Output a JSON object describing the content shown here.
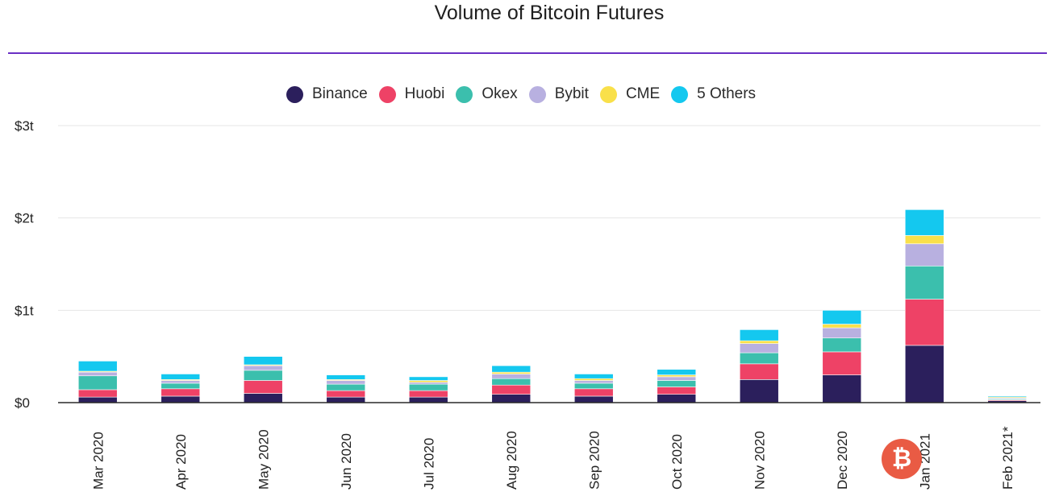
{
  "chart_data": {
    "type": "bar",
    "stacked": true,
    "title": "Volume of Bitcoin Futures",
    "xlabel": "",
    "ylabel": "",
    "ylim": [
      0,
      3
    ],
    "y_ticks": [
      {
        "value": 0,
        "label": "$0"
      },
      {
        "value": 1,
        "label": "$1t"
      },
      {
        "value": 2,
        "label": "$2t"
      },
      {
        "value": 3,
        "label": "$3t"
      }
    ],
    "categories": [
      "Mar 2020",
      "Apr 2020",
      "May 2020",
      "Jun 2020",
      "Jul 2020",
      "Aug 2020",
      "Sep 2020",
      "Oct 2020",
      "Nov 2020",
      "Dec 2020",
      "Jan 2021",
      "Feb 2021*"
    ],
    "legend_position": "top-center",
    "series": [
      {
        "name": "Binance",
        "color": "#2b1f5c",
        "values": [
          0.06,
          0.07,
          0.1,
          0.06,
          0.06,
          0.09,
          0.07,
          0.09,
          0.25,
          0.3,
          0.62,
          0.02
        ]
      },
      {
        "name": "Huobi",
        "color": "#ee4266",
        "values": [
          0.08,
          0.08,
          0.14,
          0.07,
          0.07,
          0.1,
          0.08,
          0.08,
          0.17,
          0.25,
          0.5,
          0.01
        ]
      },
      {
        "name": "Okex",
        "color": "#3bbfad",
        "values": [
          0.15,
          0.06,
          0.11,
          0.07,
          0.07,
          0.07,
          0.06,
          0.07,
          0.12,
          0.15,
          0.36,
          0.01
        ]
      },
      {
        "name": "Bybit",
        "color": "#b8b0e0",
        "values": [
          0.04,
          0.03,
          0.05,
          0.04,
          0.02,
          0.05,
          0.03,
          0.04,
          0.1,
          0.11,
          0.24,
          0.01
        ]
      },
      {
        "name": "CME",
        "color": "#f9e04a",
        "values": [
          0.01,
          0.01,
          0.01,
          0.01,
          0.02,
          0.02,
          0.02,
          0.02,
          0.03,
          0.04,
          0.09,
          0.01
        ]
      },
      {
        "name": "5 Others",
        "color": "#14c8ef",
        "values": [
          0.11,
          0.06,
          0.09,
          0.05,
          0.04,
          0.07,
          0.05,
          0.06,
          0.12,
          0.15,
          0.28,
          0.01
        ]
      }
    ]
  },
  "watermark": {
    "symbol": "₿"
  }
}
